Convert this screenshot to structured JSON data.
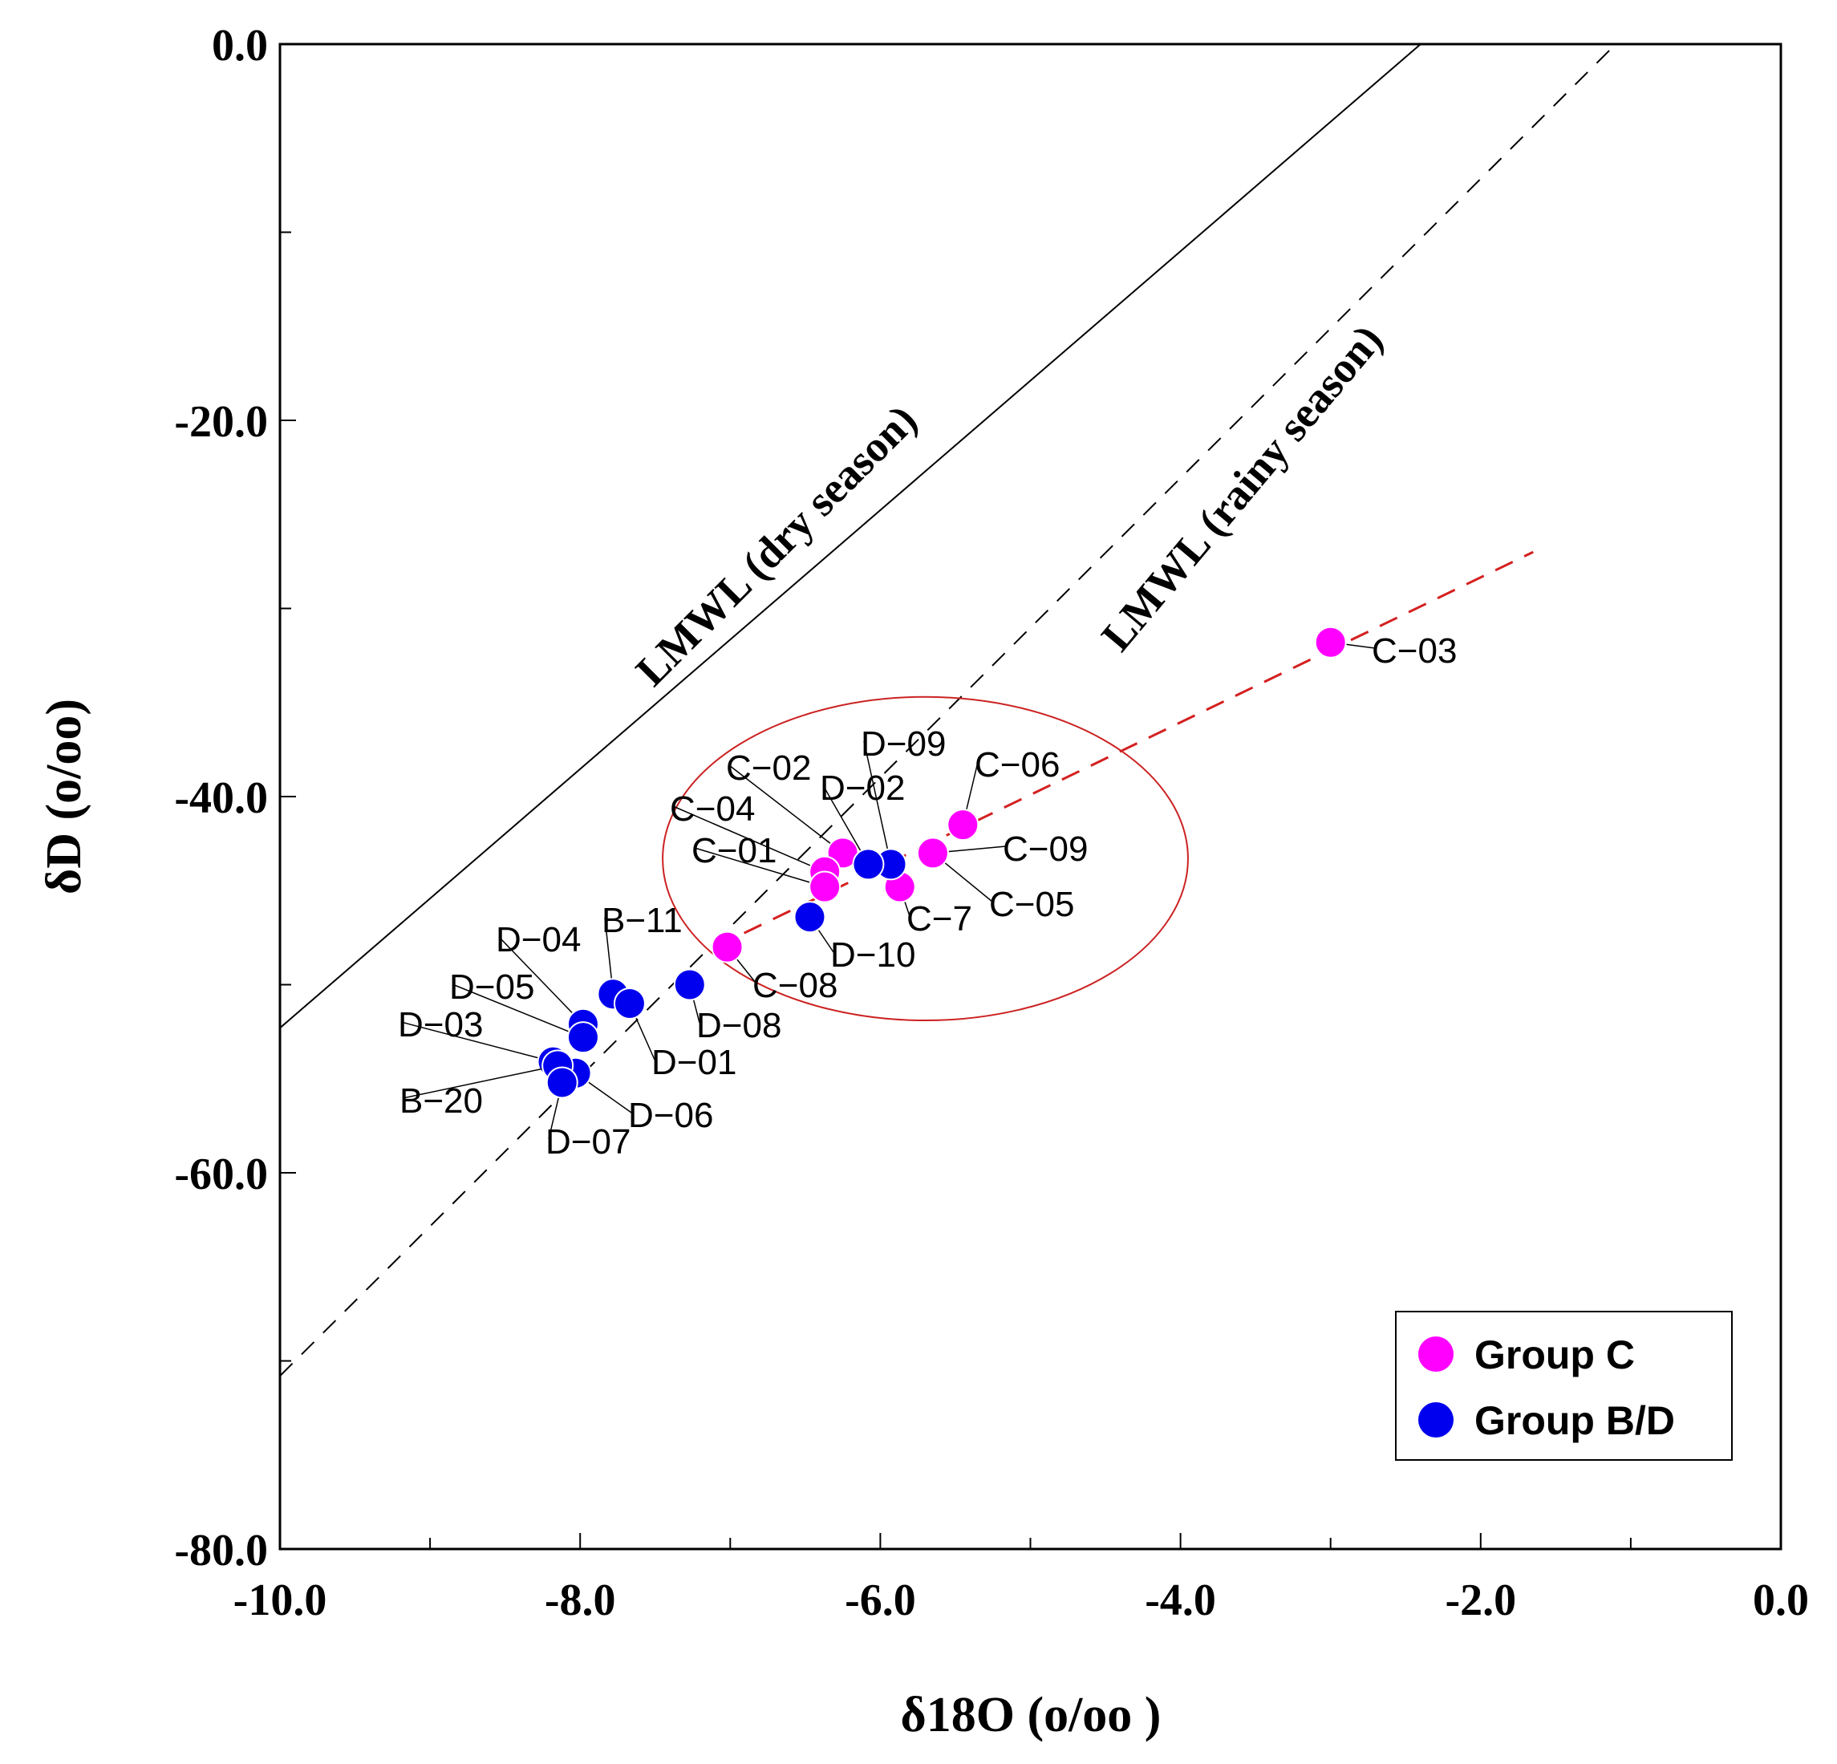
{
  "chart_data": {
    "type": "scatter",
    "xlabel": "δ18O (o/oo )",
    "ylabel": "δD (o/oo)",
    "xlim": [
      -10,
      0
    ],
    "ylim": [
      -80,
      0
    ],
    "x_ticks": [
      {
        "value": -10,
        "label": "-10.0"
      },
      {
        "value": -8,
        "label": "-8.0"
      },
      {
        "value": -6,
        "label": "-6.0"
      },
      {
        "value": -4,
        "label": "-4.0"
      },
      {
        "value": -2,
        "label": "-2.0"
      },
      {
        "value": 0,
        "label": "0.0"
      }
    ],
    "y_ticks": [
      {
        "value": 0,
        "label": "0.0"
      },
      {
        "value": -20,
        "label": "-20.0"
      },
      {
        "value": -40,
        "label": "-40.0"
      },
      {
        "value": -60,
        "label": "-60.0"
      },
      {
        "value": -80,
        "label": "-80.0"
      }
    ],
    "grid": false,
    "lines": [
      {
        "label": "LMWL (dry season)",
        "style": "solid",
        "color": "#000000",
        "x": [
          -10,
          -2.4
        ],
        "y": [
          -52.3,
          0
        ]
      },
      {
        "label": "LMWL (rainy season)",
        "style": "dashed",
        "color": "#000000",
        "x": [
          -10,
          -1.1
        ],
        "y": [
          -70.8,
          0
        ]
      },
      {
        "label": "",
        "style": "dashed",
        "color": "#d42020",
        "x": [
          -7.1,
          -1.65
        ],
        "y": [
          -48.0,
          -27.0
        ]
      }
    ],
    "ellipse": {
      "center": [
        -5.7,
        -43.3
      ],
      "rx": 1.75,
      "ry": 8.6,
      "color": "#cc2222"
    },
    "series": [
      {
        "name": "Group C",
        "color": "#ff00ff",
        "points": [
          {
            "label": "C−03",
            "x": -3.0,
            "y": -31.8
          },
          {
            "label": "C−06",
            "x": -5.45,
            "y": -41.5
          },
          {
            "label": "C−09",
            "x": -5.65,
            "y": -43.0
          },
          {
            "label": "C−05",
            "x": -5.65,
            "y": -43.0
          },
          {
            "label": "C−7",
            "x": -5.87,
            "y": -44.8
          },
          {
            "label": "C−02",
            "x": -6.25,
            "y": -43.0
          },
          {
            "label": "C−04",
            "x": -6.37,
            "y": -44.0
          },
          {
            "label": "C−01",
            "x": -6.37,
            "y": -44.8
          },
          {
            "label": "C−08",
            "x": -7.02,
            "y": -48.0
          }
        ]
      },
      {
        "name": "Group B/D",
        "color": "#0000ee",
        "points": [
          {
            "label": "D−09",
            "x": -5.93,
            "y": -43.6
          },
          {
            "label": "D−02",
            "x": -6.08,
            "y": -43.6
          },
          {
            "label": "D−10",
            "x": -6.47,
            "y": -46.4
          },
          {
            "label": "D−08",
            "x": -7.27,
            "y": -50.0
          },
          {
            "label": "B−11",
            "x": -7.78,
            "y": -50.5
          },
          {
            "label": "D−01",
            "x": -7.67,
            "y": -51.0
          },
          {
            "label": "D−04",
            "x": -7.98,
            "y": -52.1
          },
          {
            "label": "D−05",
            "x": -7.98,
            "y": -52.8
          },
          {
            "label": "D−03",
            "x": -8.18,
            "y": -54.1
          },
          {
            "label": "D−06",
            "x": -8.03,
            "y": -54.7
          },
          {
            "label": "B−20",
            "x": -8.15,
            "y": -54.3
          },
          {
            "label": "D−07",
            "x": -8.12,
            "y": -55.2
          }
        ]
      }
    ],
    "legend": {
      "position": "bottom-right",
      "entries": [
        "Group C",
        "Group B/D"
      ]
    }
  }
}
